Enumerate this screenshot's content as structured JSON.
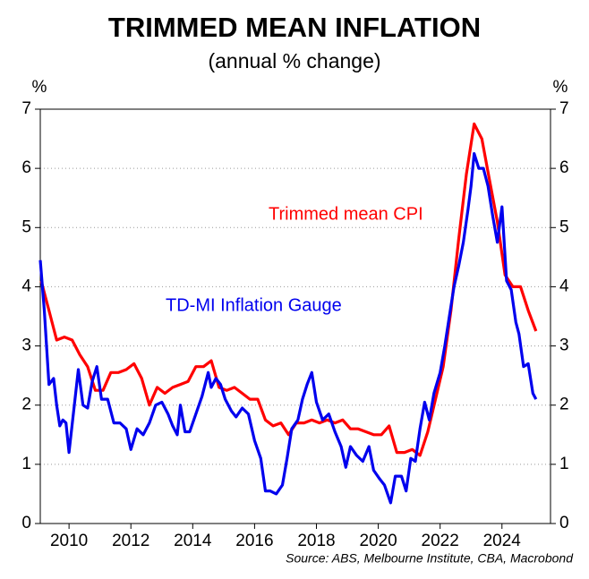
{
  "chart_data": {
    "type": "line",
    "title": "TRIMMED MEAN INFLATION",
    "subtitle": "(annual % change)",
    "y_label": "%",
    "y2_label": "%",
    "source": "Source: ABS, Melbourne Institute, CBA, Macrobond",
    "xlim": [
      2009.07,
      2025.57
    ],
    "xticks": [
      2010,
      2012,
      2014,
      2016,
      2018,
      2020,
      2022,
      2024
    ],
    "ylim": [
      0,
      7
    ],
    "yticks": [
      0,
      1,
      2,
      3,
      4,
      5,
      6,
      7
    ],
    "y2lim": [
      0,
      7
    ],
    "y2ticks": [
      0,
      1,
      2,
      3,
      4,
      5,
      6,
      7
    ],
    "grid": true,
    "series": [
      {
        "name": "Trimmed mean CPI",
        "color": "#ff0000",
        "x": [
          2009.1,
          2009.35,
          2009.6,
          2009.85,
          2010.1,
          2010.35,
          2010.6,
          2010.85,
          2011.1,
          2011.35,
          2011.6,
          2011.85,
          2012.1,
          2012.35,
          2012.6,
          2012.85,
          2013.1,
          2013.35,
          2013.6,
          2013.85,
          2014.1,
          2014.35,
          2014.6,
          2014.85,
          2015.1,
          2015.35,
          2015.6,
          2015.85,
          2016.1,
          2016.35,
          2016.6,
          2016.85,
          2017.1,
          2017.35,
          2017.6,
          2017.85,
          2018.1,
          2018.35,
          2018.6,
          2018.85,
          2019.1,
          2019.35,
          2019.6,
          2019.85,
          2020.1,
          2020.35,
          2020.6,
          2020.85,
          2021.1,
          2021.35,
          2021.6,
          2021.85,
          2022.1,
          2022.35,
          2022.6,
          2022.85,
          2023.1,
          2023.35,
          2023.6,
          2023.85,
          2024.1,
          2024.35,
          2024.6,
          2024.85,
          2025.1
        ],
        "values": [
          4.1,
          3.6,
          3.1,
          3.15,
          3.1,
          2.85,
          2.65,
          2.25,
          2.25,
          2.55,
          2.55,
          2.6,
          2.7,
          2.45,
          2.0,
          2.3,
          2.2,
          2.3,
          2.35,
          2.4,
          2.65,
          2.65,
          2.75,
          2.3,
          2.25,
          2.3,
          2.2,
          2.1,
          2.1,
          1.75,
          1.65,
          1.7,
          1.5,
          1.7,
          1.7,
          1.75,
          1.7,
          1.75,
          1.7,
          1.75,
          1.6,
          1.6,
          1.55,
          1.5,
          1.5,
          1.65,
          1.2,
          1.2,
          1.25,
          1.15,
          1.55,
          2.1,
          2.65,
          3.6,
          4.8,
          5.9,
          6.75,
          6.5,
          5.8,
          5.1,
          4.2,
          4.0,
          4.0,
          3.6,
          3.25
        ]
      },
      {
        "name": "TD-MI Inflation Gauge",
        "color": "#0000ee",
        "x": [
          2009.07,
          2009.2,
          2009.35,
          2009.5,
          2009.6,
          2009.7,
          2009.8,
          2009.9,
          2010.0,
          2010.15,
          2010.3,
          2010.45,
          2010.6,
          2010.75,
          2010.9,
          2011.05,
          2011.25,
          2011.45,
          2011.65,
          2011.85,
          2012.0,
          2012.2,
          2012.4,
          2012.6,
          2012.8,
          2013.0,
          2013.2,
          2013.35,
          2013.5,
          2013.6,
          2013.75,
          2013.9,
          2014.1,
          2014.3,
          2014.5,
          2014.6,
          2014.75,
          2014.9,
          2015.05,
          2015.25,
          2015.4,
          2015.6,
          2015.8,
          2016.0,
          2016.2,
          2016.35,
          2016.5,
          2016.7,
          2016.9,
          2017.05,
          2017.2,
          2017.4,
          2017.55,
          2017.7,
          2017.85,
          2018.0,
          2018.2,
          2018.4,
          2018.6,
          2018.8,
          2018.95,
          2019.1,
          2019.3,
          2019.5,
          2019.7,
          2019.85,
          2020.05,
          2020.2,
          2020.4,
          2020.55,
          2020.75,
          2020.9,
          2021.05,
          2021.2,
          2021.35,
          2021.5,
          2021.65,
          2021.8,
          2022.0,
          2022.15,
          2022.3,
          2022.45,
          2022.6,
          2022.75,
          2022.9,
          2023.0,
          2023.1,
          2023.25,
          2023.4,
          2023.55,
          2023.7,
          2023.85,
          2024.0,
          2024.15,
          2024.3,
          2024.45,
          2024.55,
          2024.7,
          2024.85,
          2025.0,
          2025.1
        ],
        "values": [
          4.45,
          3.6,
          2.35,
          2.45,
          2.0,
          1.65,
          1.75,
          1.7,
          1.2,
          1.9,
          2.6,
          2.0,
          1.95,
          2.4,
          2.65,
          2.1,
          2.1,
          1.7,
          1.7,
          1.6,
          1.25,
          1.6,
          1.5,
          1.7,
          2.0,
          2.05,
          1.85,
          1.65,
          1.5,
          2.0,
          1.55,
          1.55,
          1.85,
          2.15,
          2.55,
          2.3,
          2.45,
          2.35,
          2.1,
          1.9,
          1.8,
          1.95,
          1.85,
          1.4,
          1.1,
          0.55,
          0.55,
          0.5,
          0.65,
          1.1,
          1.6,
          1.75,
          2.1,
          2.35,
          2.55,
          2.05,
          1.75,
          1.85,
          1.55,
          1.3,
          0.95,
          1.3,
          1.15,
          1.05,
          1.3,
          0.9,
          0.75,
          0.65,
          0.35,
          0.8,
          0.8,
          0.55,
          1.1,
          1.05,
          1.6,
          2.05,
          1.75,
          2.2,
          2.55,
          3.0,
          3.5,
          4.0,
          4.35,
          4.75,
          5.3,
          5.7,
          6.25,
          6.0,
          6.0,
          5.7,
          5.2,
          4.75,
          5.35,
          4.1,
          3.95,
          3.4,
          3.2,
          2.65,
          2.7,
          2.2,
          2.1
        ]
      }
    ]
  }
}
